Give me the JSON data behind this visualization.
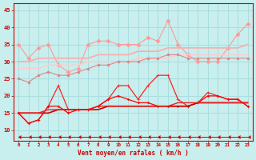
{
  "bg_color": "#c8eeed",
  "grid_color": "#aadddd",
  "xlabel": "Vent moyen/en rafales ( km/h )",
  "xlabel_color": "#cc0000",
  "tick_color": "#cc0000",
  "xlim": [
    -0.5,
    23.5
  ],
  "ylim": [
    7,
    47
  ],
  "yticks": [
    10,
    15,
    20,
    25,
    30,
    35,
    40,
    45
  ],
  "xticks": [
    0,
    1,
    2,
    3,
    4,
    5,
    6,
    7,
    8,
    9,
    10,
    11,
    12,
    13,
    14,
    15,
    16,
    17,
    18,
    19,
    20,
    21,
    22,
    23
  ],
  "series": [
    {
      "color": "#ff9999",
      "linewidth": 0.8,
      "markersize": 2.5,
      "marker": "D",
      "markerfacecolor": "#ff9999",
      "y": [
        35,
        31,
        34,
        35,
        29,
        27,
        28,
        35,
        36,
        36,
        35,
        35,
        35,
        37,
        36,
        42,
        35,
        32,
        30,
        30,
        30,
        34,
        38,
        41
      ]
    },
    {
      "color": "#ffaaaa",
      "linewidth": 1.2,
      "markersize": 0,
      "marker": "None",
      "markerfacecolor": "#ffaaaa",
      "y": [
        30,
        30,
        31,
        31,
        31,
        31,
        31,
        31,
        32,
        32,
        32,
        32,
        33,
        33,
        33,
        34,
        34,
        34,
        34,
        34,
        34,
        34,
        34,
        35
      ]
    },
    {
      "color": "#ffcccc",
      "linewidth": 1.2,
      "markersize": 0,
      "marker": "None",
      "markerfacecolor": "#ffcccc",
      "y": [
        28,
        28,
        28,
        29,
        29,
        29,
        29,
        30,
        30,
        30,
        30,
        30,
        31,
        31,
        31,
        31,
        32,
        32,
        32,
        32,
        32,
        32,
        32,
        32
      ]
    },
    {
      "color": "#dd8888",
      "linewidth": 0.8,
      "markersize": 2.0,
      "marker": "o",
      "markerfacecolor": "#dd8888",
      "y": [
        25,
        24,
        26,
        27,
        26,
        26,
        27,
        28,
        29,
        29,
        30,
        30,
        30,
        31,
        31,
        32,
        32,
        31,
        31,
        31,
        31,
        31,
        31,
        31
      ]
    },
    {
      "color": "#ff2222",
      "linewidth": 0.9,
      "markersize": 2.5,
      "marker": "+",
      "markerfacecolor": "#ff2222",
      "y": [
        15,
        12,
        13,
        17,
        23,
        16,
        16,
        16,
        17,
        19,
        23,
        23,
        19,
        23,
        26,
        26,
        19,
        17,
        18,
        21,
        20,
        19,
        19,
        17
      ]
    },
    {
      "color": "#ff0000",
      "linewidth": 0.9,
      "markersize": 2.5,
      "marker": ".",
      "markerfacecolor": "#ff0000",
      "y": [
        15,
        12,
        13,
        17,
        17,
        15,
        16,
        16,
        17,
        19,
        20,
        19,
        18,
        18,
        17,
        17,
        17,
        17,
        18,
        20,
        20,
        19,
        19,
        17
      ]
    },
    {
      "color": "#cc0000",
      "linewidth": 1.2,
      "markersize": 0,
      "marker": "None",
      "markerfacecolor": "#cc0000",
      "y": [
        15,
        15,
        15,
        15,
        16,
        16,
        16,
        16,
        16,
        17,
        17,
        17,
        17,
        17,
        17,
        17,
        17,
        17,
        18,
        18,
        18,
        18,
        18,
        18
      ]
    },
    {
      "color": "#ee2222",
      "linewidth": 1.0,
      "markersize": 0,
      "marker": "None",
      "markerfacecolor": "#ee2222",
      "y": [
        15,
        15,
        15,
        16,
        16,
        16,
        16,
        16,
        17,
        17,
        17,
        17,
        17,
        17,
        17,
        17,
        18,
        18,
        18,
        18,
        18,
        18,
        18,
        18
      ]
    },
    {
      "color": "#cc0000",
      "linewidth": 0.7,
      "markersize": 2.5,
      "marker": 4,
      "markerfacecolor": "#cc0000",
      "y": [
        8,
        8,
        8,
        8,
        8,
        8,
        8,
        8,
        8,
        8,
        8,
        8,
        8,
        8,
        8,
        8,
        8,
        8,
        8,
        8,
        8,
        8,
        8,
        8
      ]
    }
  ]
}
